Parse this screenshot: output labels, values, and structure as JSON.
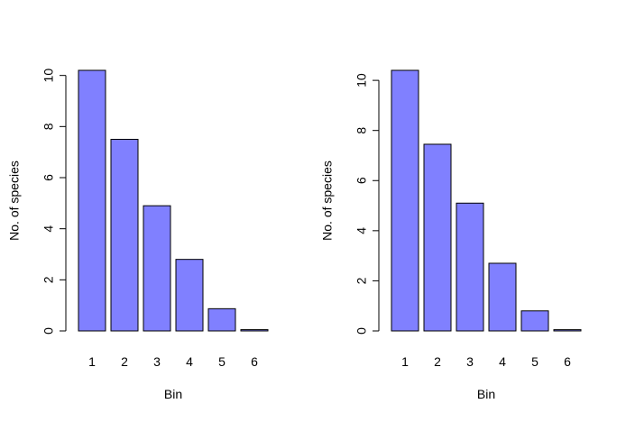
{
  "chart_data": [
    {
      "type": "bar",
      "categories": [
        "1",
        "2",
        "3",
        "4",
        "5",
        "6"
      ],
      "values": [
        10.2,
        7.5,
        4.9,
        2.8,
        0.87,
        0.05
      ],
      "xlabel": "Bin",
      "ylabel": "No. of species",
      "yticks": [
        "0",
        "2",
        "4",
        "6",
        "8",
        "10"
      ],
      "ylim": [
        0,
        10.2
      ],
      "bar_color": "#8080ff",
      "grid": false
    },
    {
      "type": "bar",
      "categories": [
        "1",
        "2",
        "3",
        "4",
        "5",
        "6"
      ],
      "values": [
        10.4,
        7.45,
        5.1,
        2.7,
        0.8,
        0.05
      ],
      "xlabel": "Bin",
      "ylabel": "No. of species",
      "yticks": [
        "0",
        "2",
        "4",
        "6",
        "8",
        "10"
      ],
      "ylim": [
        0,
        10.4
      ],
      "bar_color": "#8080ff",
      "grid": false
    }
  ]
}
